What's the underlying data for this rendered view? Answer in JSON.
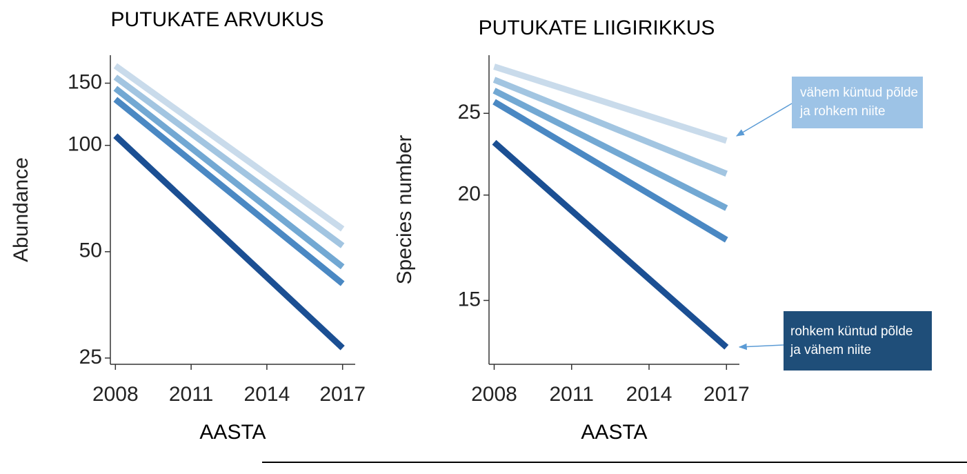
{
  "chart_data": [
    {
      "type": "line",
      "title": "PUTUKATE ARVUKUS",
      "x_label": "AASTA",
      "y_label": "Abundance",
      "log_y": true,
      "xlim": [
        2007.8,
        2017.5
      ],
      "ylim": [
        24,
        180
      ],
      "xticks": [
        2008,
        2011,
        2014,
        2017
      ],
      "yticks": [
        25,
        50,
        100,
        150
      ],
      "x": [
        2008,
        2017
      ],
      "series": [
        {
          "color": "#c9dbeb",
          "values": [
            168,
            58
          ]
        },
        {
          "color": "#a2c5e1",
          "values": [
            156,
            52
          ]
        },
        {
          "color": "#72a8d3",
          "values": [
            145,
            45.3
          ]
        },
        {
          "color": "#4a88c3",
          "values": [
            135,
            40.6
          ]
        },
        {
          "color": "#1b4f93",
          "values": [
            106.5,
            26.7
          ]
        }
      ]
    },
    {
      "type": "line",
      "title": "PUTUKATE LIIGIRIKKUS",
      "x_label": "AASTA",
      "y_label": "Species number",
      "log_y": true,
      "xlim": [
        2007.8,
        2017.5
      ],
      "ylim": [
        12.6,
        29.3
      ],
      "xticks": [
        2008,
        2011,
        2014,
        2017
      ],
      "yticks": [
        15,
        20,
        25
      ],
      "x": [
        2008,
        2017
      ],
      "series": [
        {
          "color": "#c9dbeb",
          "values": [
            28.4,
            23.2
          ]
        },
        {
          "color": "#a2c5e1",
          "values": [
            27.4,
            21.2
          ]
        },
        {
          "color": "#72a8d3",
          "values": [
            26.6,
            19.3
          ]
        },
        {
          "color": "#4a88c3",
          "values": [
            25.8,
            17.7
          ]
        },
        {
          "color": "#1b4f93",
          "values": [
            23.1,
            13.2
          ]
        }
      ],
      "annotations": [
        {
          "lines": [
            "vähem küntud põlde",
            "ja rohkem niite"
          ],
          "color": "#9dc3e6"
        },
        {
          "lines": [
            "rohkem küntud põlde",
            "ja vähem niite"
          ],
          "color": "#1f4e79"
        }
      ]
    }
  ]
}
